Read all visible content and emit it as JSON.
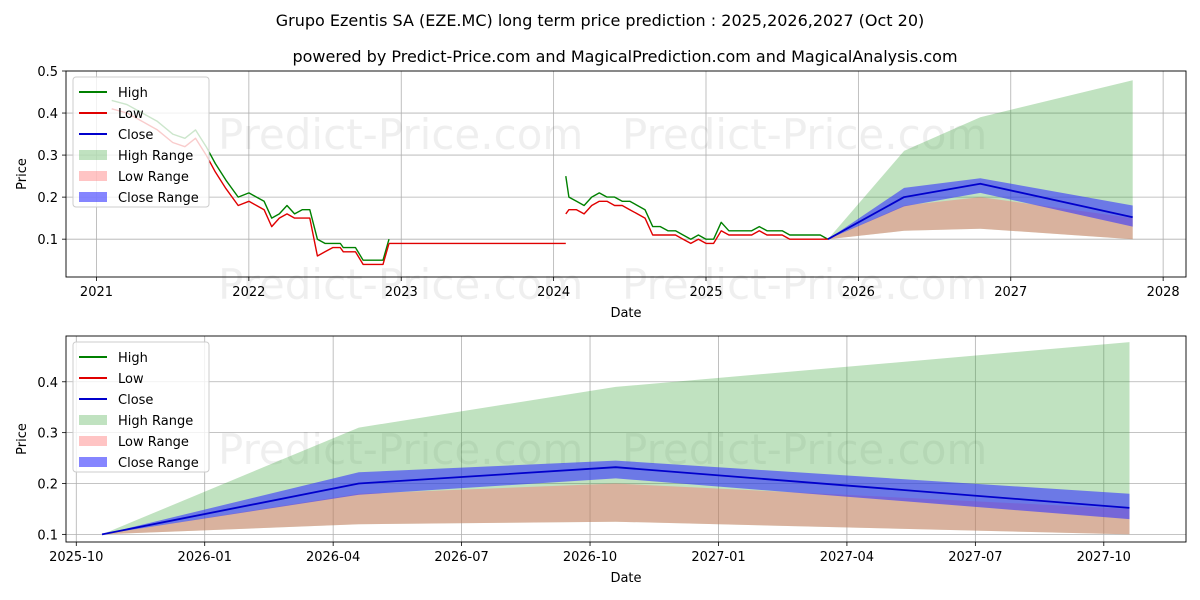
{
  "title": "Grupo Ezentis SA (EZE.MC) long term price prediction : 2025,2026,2027 (Oct 20)",
  "subtitle": "powered by Predict-Price.com and MagicalPrediction.com and MagicalAnalysis.com",
  "watermark": "Predict-Price.com",
  "colors": {
    "high": "#008000",
    "low": "#e00000",
    "close": "#0000cc",
    "high_range": "#2e9e2e",
    "low_range": "#ff6b6b",
    "close_range": "#3333ff"
  },
  "chart_data": [
    {
      "type": "line",
      "xlabel": "Date",
      "ylabel": "Price",
      "xlim": [
        2020.8,
        2028.15
      ],
      "ylim": [
        0.01,
        0.5
      ],
      "x_ticks": [
        "2021",
        "2022",
        "2023",
        "2024",
        "2025",
        "2026",
        "2027",
        "2028"
      ],
      "y_ticks": [
        "0.1",
        "0.2",
        "0.3",
        "0.4",
        "0.5"
      ],
      "legend": [
        "High",
        "Low",
        "Close",
        "High Range",
        "Low Range",
        "Close Range"
      ],
      "legend_position": "top-left",
      "history": {
        "x": [
          2021.1,
          2021.2,
          2021.3,
          2021.4,
          2021.5,
          2021.58,
          2021.65,
          2021.72,
          2021.78,
          2021.85,
          2021.93,
          2022.0,
          2022.05,
          2022.1,
          2022.15,
          2022.2,
          2022.25,
          2022.3,
          2022.35,
          2022.4,
          2022.45,
          2022.5,
          2022.55,
          2022.6,
          2022.62,
          2022.66,
          2022.7,
          2022.75,
          2022.8,
          2022.85,
          2022.88,
          2022.92
        ],
        "high": [
          0.43,
          0.42,
          0.4,
          0.38,
          0.35,
          0.34,
          0.36,
          0.32,
          0.28,
          0.24,
          0.2,
          0.21,
          0.2,
          0.19,
          0.15,
          0.16,
          0.18,
          0.16,
          0.17,
          0.17,
          0.1,
          0.09,
          0.09,
          0.09,
          0.08,
          0.08,
          0.08,
          0.05,
          0.05,
          0.05,
          0.05,
          0.1
        ],
        "low": [
          0.41,
          0.4,
          0.38,
          0.36,
          0.33,
          0.32,
          0.34,
          0.3,
          0.26,
          0.22,
          0.18,
          0.19,
          0.18,
          0.17,
          0.13,
          0.15,
          0.16,
          0.15,
          0.15,
          0.15,
          0.06,
          0.07,
          0.08,
          0.08,
          0.07,
          0.07,
          0.07,
          0.04,
          0.04,
          0.04,
          0.04,
          0.09
        ]
      },
      "flat": {
        "x": [
          2022.92,
          2024.08
        ],
        "value": 0.09
      },
      "history2": {
        "x": [
          2024.08,
          2024.1,
          2024.15,
          2024.2,
          2024.25,
          2024.3,
          2024.35,
          2024.4,
          2024.45,
          2024.5,
          2024.55,
          2024.6,
          2024.65,
          2024.7,
          2024.75,
          2024.8,
          2024.85,
          2024.9,
          2024.95,
          2025.0,
          2025.05,
          2025.1,
          2025.15,
          2025.2,
          2025.25,
          2025.3,
          2025.35,
          2025.4,
          2025.45,
          2025.5,
          2025.55,
          2025.6,
          2025.65,
          2025.7,
          2025.75,
          2025.8
        ],
        "high": [
          0.25,
          0.2,
          0.19,
          0.18,
          0.2,
          0.21,
          0.2,
          0.2,
          0.19,
          0.19,
          0.18,
          0.17,
          0.13,
          0.13,
          0.12,
          0.12,
          0.11,
          0.1,
          0.11,
          0.1,
          0.1,
          0.14,
          0.12,
          0.12,
          0.12,
          0.12,
          0.13,
          0.12,
          0.12,
          0.12,
          0.11,
          0.11,
          0.11,
          0.11,
          0.11,
          0.1
        ],
        "low": [
          0.16,
          0.17,
          0.17,
          0.16,
          0.18,
          0.19,
          0.19,
          0.18,
          0.18,
          0.17,
          0.16,
          0.15,
          0.11,
          0.11,
          0.11,
          0.11,
          0.1,
          0.09,
          0.1,
          0.09,
          0.09,
          0.12,
          0.11,
          0.11,
          0.11,
          0.11,
          0.12,
          0.11,
          0.11,
          0.11,
          0.1,
          0.1,
          0.1,
          0.1,
          0.1,
          0.1
        ]
      },
      "forecast": {
        "x": [
          2025.8,
          2026.3,
          2026.8,
          2027.8
        ],
        "close": [
          0.1,
          0.2,
          0.232,
          0.152
        ],
        "close_hi": [
          0.1,
          0.222,
          0.245,
          0.18
        ],
        "close_lo": [
          0.1,
          0.178,
          0.21,
          0.13
        ],
        "high_hi": [
          0.1,
          0.31,
          0.39,
          0.478
        ],
        "high_lo": [
          0.1,
          0.12,
          0.125,
          0.1
        ],
        "low_hi": [
          0.1,
          0.18,
          0.2,
          0.15
        ],
        "low_lo": [
          0.1,
          0.12,
          0.125,
          0.1
        ]
      }
    },
    {
      "type": "line",
      "xlabel": "Date",
      "ylabel": "Price",
      "xlim": [
        2025.73,
        2027.91
      ],
      "ylim": [
        0.085,
        0.49
      ],
      "x_ticks": [
        {
          "label": "2025-10",
          "value": 2025.75
        },
        {
          "label": "2026-01",
          "value": 2026.0
        },
        {
          "label": "2026-04",
          "value": 2026.25
        },
        {
          "label": "2026-07",
          "value": 2026.5
        },
        {
          "label": "2026-10",
          "value": 2026.75
        },
        {
          "label": "2027-01",
          "value": 2027.0
        },
        {
          "label": "2027-04",
          "value": 2027.25
        },
        {
          "label": "2027-07",
          "value": 2027.5
        },
        {
          "label": "2027-10",
          "value": 2027.75
        }
      ],
      "y_ticks": [
        "0.1",
        "0.2",
        "0.3",
        "0.4"
      ],
      "legend": [
        "High",
        "Low",
        "Close",
        "High Range",
        "Low Range",
        "Close Range"
      ],
      "legend_position": "top-left",
      "forecast": {
        "x": [
          2025.8,
          2026.3,
          2026.8,
          2027.8
        ],
        "close": [
          0.1,
          0.2,
          0.232,
          0.152
        ],
        "close_hi": [
          0.1,
          0.222,
          0.245,
          0.18
        ],
        "close_lo": [
          0.1,
          0.178,
          0.21,
          0.13
        ],
        "high_hi": [
          0.1,
          0.31,
          0.39,
          0.478
        ],
        "high_lo": [
          0.1,
          0.12,
          0.125,
          0.1
        ],
        "low_hi": [
          0.1,
          0.18,
          0.2,
          0.15
        ],
        "low_lo": [
          0.1,
          0.12,
          0.125,
          0.1
        ]
      }
    }
  ]
}
